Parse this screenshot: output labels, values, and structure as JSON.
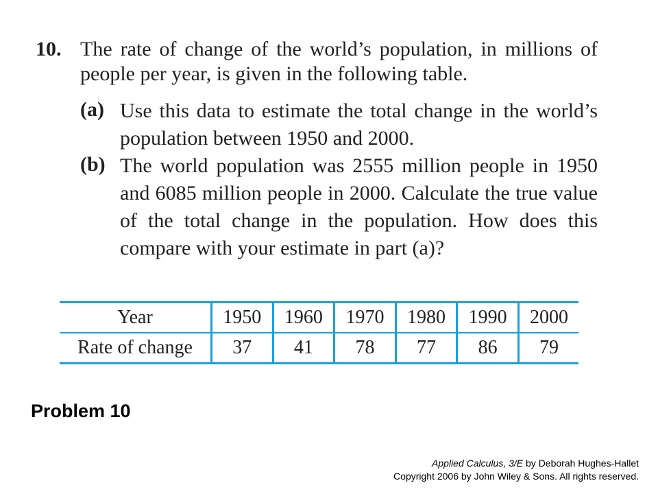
{
  "problem": {
    "number": "10.",
    "stem": "The rate of change of the world’s population, in millions of people per year, is given in the following table.",
    "parts": [
      {
        "label": "(a)",
        "text": "Use this data to estimate the total change in the world’s population between 1950 and 2000."
      },
      {
        "label": "(b)",
        "text": "The world population was 2555 million people in 1950 and 6085 million people in 2000. Calculate the true value of the total change in the population. How does this compare with your estimate in part (a)?"
      }
    ]
  },
  "table": {
    "row_headers": [
      "Year",
      "Rate of change"
    ],
    "years": [
      "1950",
      "1960",
      "1970",
      "1980",
      "1990",
      "2000"
    ],
    "rates": [
      "37",
      "41",
      "78",
      "77",
      "86",
      "79"
    ],
    "border_color": "#1aa0dc"
  },
  "caption": "Problem 10",
  "credit": {
    "book": "Applied Calculus, 3/E",
    "byline": " by Deborah Hughes-Hallet",
    "copyright": "Copyright 2006 by John Wiley & Sons.  All rights reserved."
  }
}
